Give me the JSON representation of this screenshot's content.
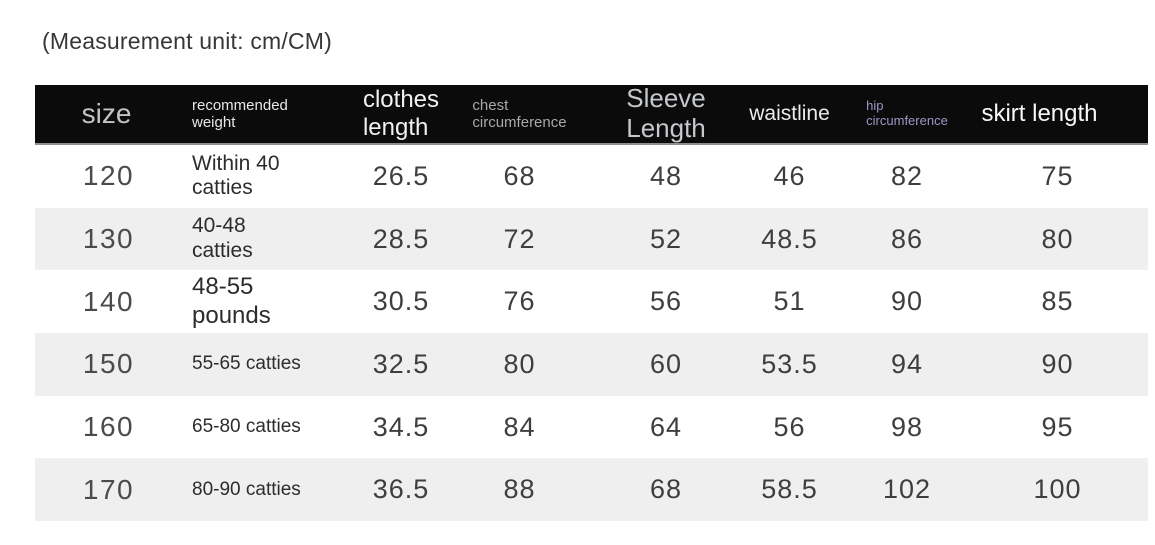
{
  "page": {
    "measurement_note": "(Measurement unit: cm/CM)"
  },
  "colors": {
    "header_bg": "#0b0b0b",
    "row_alt_bg": "#efefef",
    "header_text": "#e7e7e7",
    "header_dim_text": "#a9a9ad",
    "hip_header_text": "#a095c8",
    "data_text": "#3e3e41"
  },
  "table": {
    "header": {
      "size": "size",
      "weight_line1": "recommended",
      "weight_line2": "weight",
      "clothes_line1": "clothes",
      "clothes_line2": "length",
      "chest_line1": "chest",
      "chest_line2": "circumference",
      "sleeve_line1": "Sleeve",
      "sleeve_line2": "Length",
      "waist": "waistline",
      "hip_line1": "hip",
      "hip_line2": "circumference",
      "skirt": "skirt length"
    },
    "rows": [
      {
        "size": "120",
        "weight_line1": "Within 40",
        "weight_line2": "catties",
        "clothes": "26.5",
        "chest": "68",
        "sleeve": "48",
        "waist": "46",
        "hip": "82",
        "skirt": "75"
      },
      {
        "size": "130",
        "weight_line1": "40-48",
        "weight_line2": "catties",
        "clothes": "28.5",
        "chest": "72",
        "sleeve": "52",
        "waist": "48.5",
        "hip": "86",
        "skirt": "80"
      },
      {
        "size": "140",
        "weight_line1": "48-55",
        "weight_line2": "pounds",
        "clothes": "30.5",
        "chest": "76",
        "sleeve": "56",
        "waist": "51",
        "hip": "90",
        "skirt": "85"
      },
      {
        "size": "150",
        "weight_line1": "55-65 catties",
        "weight_line2": "",
        "clothes": "32.5",
        "chest": "80",
        "sleeve": "60",
        "waist": "53.5",
        "hip": "94",
        "skirt": "90"
      },
      {
        "size": "160",
        "weight_line1": "65-80 catties",
        "weight_line2": "",
        "clothes": "34.5",
        "chest": "84",
        "sleeve": "64",
        "waist": "56",
        "hip": "98",
        "skirt": "95"
      },
      {
        "size": "170",
        "weight_line1": "80-90 catties",
        "weight_line2": "",
        "clothes": "36.5",
        "chest": "88",
        "sleeve": "68",
        "waist": "58.5",
        "hip": "102",
        "skirt": "100"
      }
    ]
  }
}
